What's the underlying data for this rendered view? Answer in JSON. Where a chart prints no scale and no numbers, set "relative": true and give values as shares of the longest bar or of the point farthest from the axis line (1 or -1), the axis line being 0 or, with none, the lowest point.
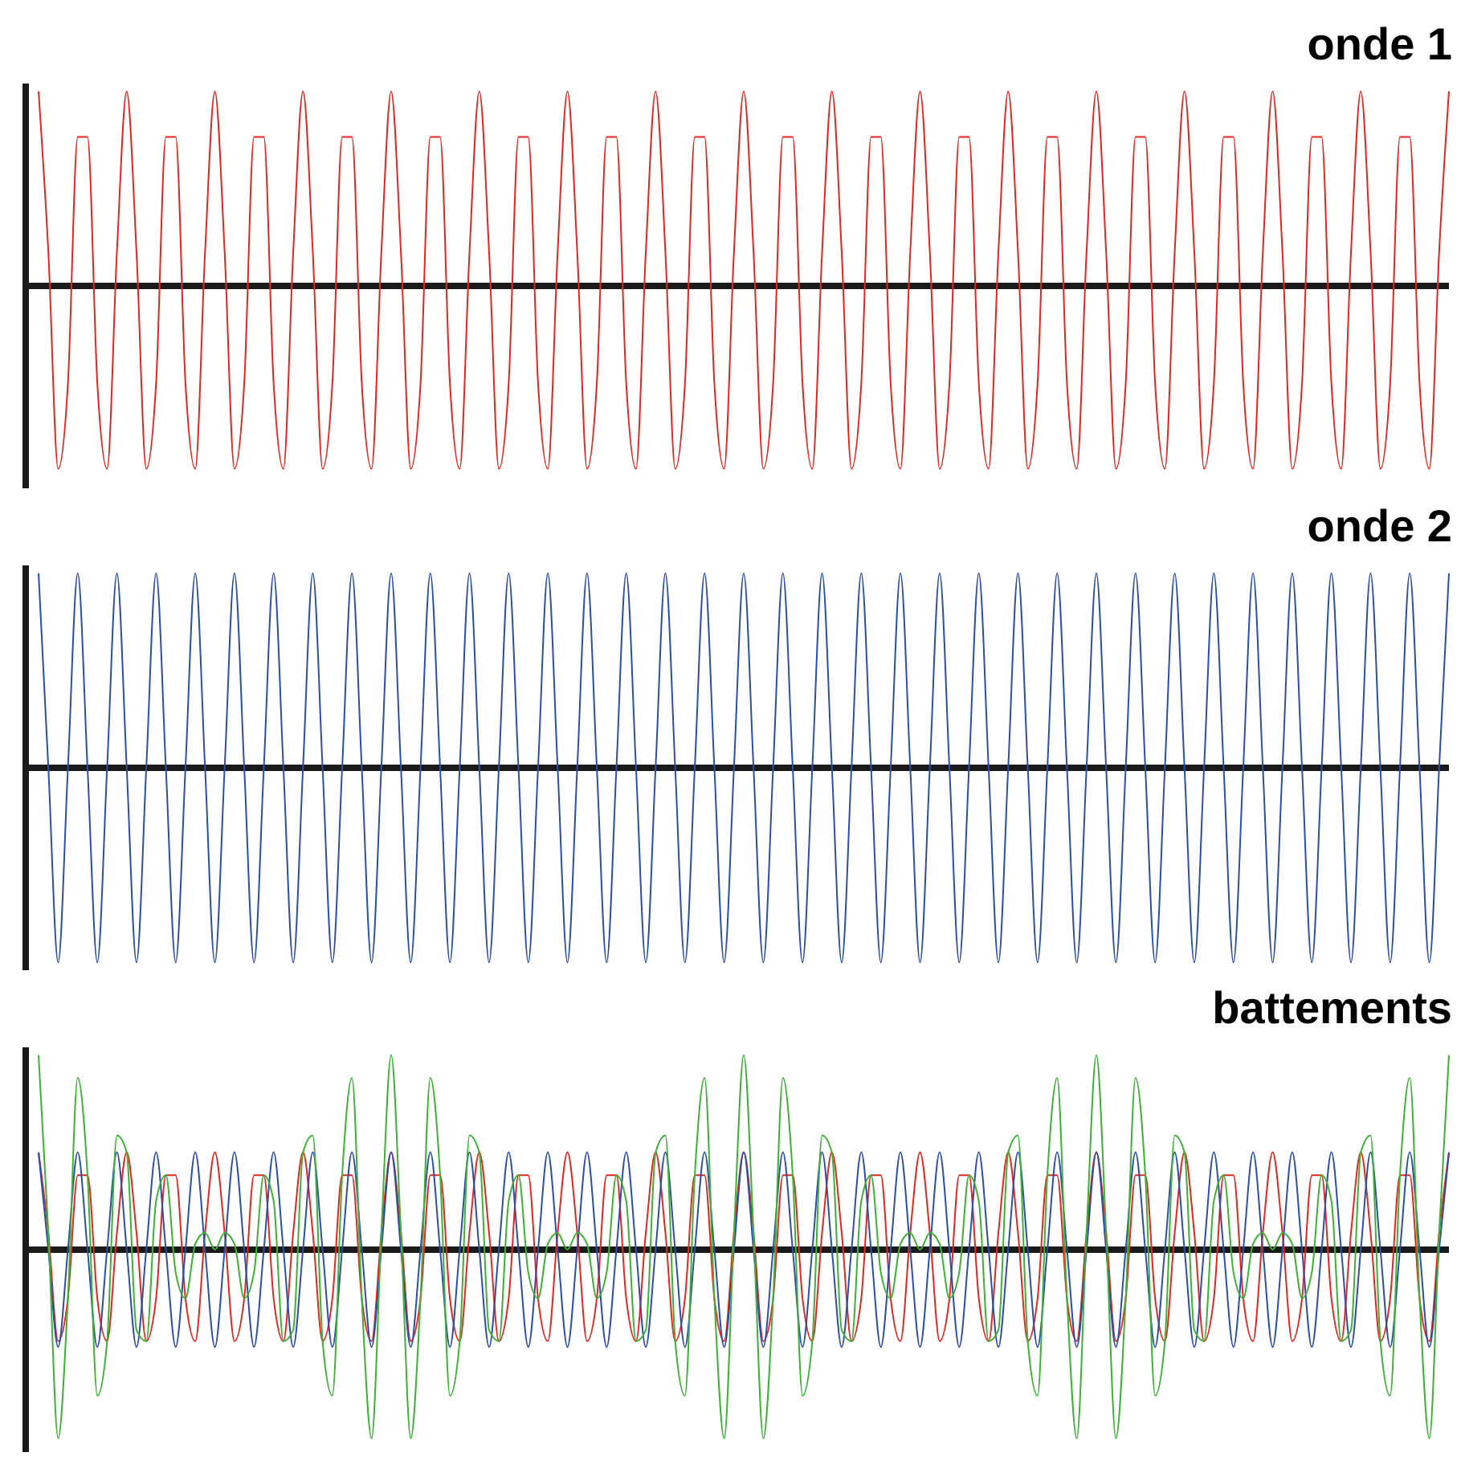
{
  "chart_data": [
    {
      "type": "line",
      "title": "onde 1",
      "relative": true,
      "categories": [
        null,
        null,
        null,
        null,
        null,
        null,
        null,
        null,
        null,
        null,
        null,
        null,
        null,
        null,
        null,
        null,
        null,
        null,
        null,
        null,
        null,
        null,
        null,
        null,
        null,
        null,
        null,
        null,
        null,
        null,
        null,
        null,
        null,
        null,
        null,
        null,
        null,
        null,
        null,
        null,
        null,
        null,
        null,
        null,
        null,
        null,
        null,
        null,
        null,
        null,
        null,
        null,
        null,
        null,
        null,
        null,
        null,
        null,
        null,
        null,
        null,
        null,
        null,
        null,
        null,
        null,
        null,
        null,
        null,
        null,
        null,
        null,
        null,
        null,
        null,
        null,
        null,
        null,
        null,
        null,
        null,
        null,
        null,
        null,
        null,
        null,
        null,
        null,
        null,
        null,
        null,
        null,
        null,
        null,
        null,
        null,
        null,
        null,
        null,
        null,
        null,
        null,
        null,
        null,
        null,
        null,
        null,
        null,
        null,
        null,
        null,
        null,
        null,
        null,
        null,
        null,
        null,
        null,
        null,
        null,
        null,
        null,
        null,
        null,
        null,
        null,
        null,
        null,
        null,
        null,
        null,
        null,
        null,
        null,
        null,
        null,
        null,
        null,
        null,
        null,
        null,
        null,
        null,
        null,
        null
      ],
      "series": [
        {
          "color": "#e3261f",
          "values": [
            1,
            0.174,
            -0.94,
            -0.5,
            0.766,
            0.766,
            -0.5,
            -0.94,
            0.174,
            1,
            0.174,
            -0.94,
            -0.5,
            0.766,
            0.766,
            -0.5,
            -0.94,
            0.174,
            1,
            0.174,
            -0.94,
            -0.5,
            0.766,
            0.766,
            -0.5,
            -0.94,
            0.174,
            1,
            0.174,
            -0.94,
            -0.5,
            0.766,
            0.766,
            -0.5,
            -0.94,
            0.174,
            1,
            0.174,
            -0.94,
            -0.5,
            0.766,
            0.766,
            -0.5,
            -0.94,
            0.174,
            1,
            0.174,
            -0.94,
            -0.5,
            0.766,
            0.766,
            -0.5,
            -0.94,
            0.174,
            1,
            0.174,
            -0.94,
            -0.5,
            0.766,
            0.766,
            -0.5,
            -0.94,
            0.174,
            1,
            0.174,
            -0.94,
            -0.5,
            0.766,
            0.766,
            -0.5,
            -0.94,
            0.174,
            1,
            0.174,
            -0.94,
            -0.5,
            0.766,
            0.766,
            -0.5,
            -0.94,
            0.174,
            1,
            0.174,
            -0.94,
            -0.5,
            0.766,
            0.766,
            -0.5,
            -0.94,
            0.174,
            1,
            0.174,
            -0.94,
            -0.5,
            0.766,
            0.766,
            -0.5,
            -0.94,
            0.174,
            1,
            0.174,
            -0.94,
            -0.5,
            0.766,
            0.766,
            -0.5,
            -0.94,
            0.174,
            1,
            0.174,
            -0.94,
            -0.5,
            0.766,
            0.766,
            -0.5,
            -0.94,
            0.174,
            1,
            0.174,
            -0.94,
            -0.5,
            0.766,
            0.766,
            -0.5,
            -0.94,
            0.174,
            1,
            0.174,
            -0.94,
            -0.5,
            0.766,
            0.766,
            -0.5,
            -0.94,
            0.174,
            1,
            0.174,
            -0.94,
            -0.5,
            0.766,
            0.766,
            -0.5,
            -0.94,
            0.174,
            1
          ]
        }
      ]
    },
    {
      "type": "line",
      "title": "onde 2",
      "relative": true,
      "categories": [
        null,
        null,
        null,
        null,
        null,
        null,
        null,
        null,
        null,
        null,
        null,
        null,
        null,
        null,
        null,
        null,
        null,
        null,
        null,
        null,
        null,
        null,
        null,
        null,
        null,
        null,
        null,
        null,
        null,
        null,
        null,
        null,
        null,
        null,
        null,
        null,
        null,
        null,
        null,
        null,
        null,
        null,
        null,
        null,
        null,
        null,
        null,
        null,
        null,
        null,
        null,
        null,
        null,
        null,
        null,
        null,
        null,
        null,
        null,
        null,
        null,
        null,
        null,
        null,
        null,
        null,
        null,
        null,
        null,
        null,
        null,
        null,
        null,
        null,
        null,
        null,
        null,
        null,
        null,
        null,
        null,
        null,
        null,
        null,
        null,
        null,
        null,
        null,
        null,
        null,
        null,
        null,
        null,
        null,
        null,
        null,
        null,
        null,
        null,
        null,
        null,
        null,
        null,
        null,
        null,
        null,
        null,
        null,
        null,
        null,
        null,
        null,
        null,
        null,
        null,
        null,
        null,
        null,
        null,
        null,
        null,
        null,
        null,
        null,
        null,
        null,
        null,
        null,
        null,
        null,
        null,
        null,
        null,
        null,
        null,
        null,
        null,
        null,
        null,
        null,
        null,
        null,
        null,
        null,
        null
      ],
      "series": [
        {
          "color": "#2c4ea6",
          "values": [
            1,
            0,
            -1,
            0,
            1,
            0,
            -1,
            0,
            1,
            0,
            -1,
            0,
            1,
            0,
            -1,
            0,
            1,
            0,
            -1,
            0,
            1,
            0,
            -1,
            0,
            1,
            0,
            -1,
            0,
            1,
            0,
            -1,
            0,
            1,
            0,
            -1,
            0,
            1,
            0,
            -1,
            0,
            1,
            0,
            -1,
            0,
            1,
            0,
            -1,
            0,
            1,
            0,
            -1,
            0,
            1,
            0,
            -1,
            0,
            1,
            0,
            -1,
            0,
            1,
            0,
            -1,
            0,
            1,
            0,
            -1,
            0,
            1,
            0,
            -1,
            0,
            1,
            0,
            -1,
            0,
            1,
            0,
            -1,
            0,
            1,
            0,
            -1,
            0,
            1,
            0,
            -1,
            0,
            1,
            0,
            -1,
            0,
            1,
            0,
            -1,
            0,
            1,
            0,
            -1,
            0,
            1,
            0,
            -1,
            0,
            1,
            0,
            -1,
            0,
            1,
            0,
            -1,
            0,
            1,
            0,
            -1,
            0,
            1,
            0,
            -1,
            0,
            1,
            0,
            -1,
            0,
            1,
            0,
            -1,
            0,
            1,
            0,
            -1,
            0,
            1,
            0,
            -1,
            0,
            1,
            0,
            -1,
            0,
            1,
            0,
            -1,
            0,
            1
          ]
        }
      ]
    },
    {
      "type": "line",
      "title": "battements",
      "relative": true,
      "categories": [
        null,
        null,
        null,
        null,
        null,
        null,
        null,
        null,
        null,
        null,
        null,
        null,
        null,
        null,
        null,
        null,
        null,
        null,
        null,
        null,
        null,
        null,
        null,
        null,
        null,
        null,
        null,
        null,
        null,
        null,
        null,
        null,
        null,
        null,
        null,
        null,
        null,
        null,
        null,
        null,
        null,
        null,
        null,
        null,
        null,
        null,
        null,
        null,
        null,
        null,
        null,
        null,
        null,
        null,
        null,
        null,
        null,
        null,
        null,
        null,
        null,
        null,
        null,
        null,
        null,
        null,
        null,
        null,
        null,
        null,
        null,
        null,
        null,
        null,
        null,
        null,
        null,
        null,
        null,
        null,
        null,
        null,
        null,
        null,
        null,
        null,
        null,
        null,
        null,
        null,
        null,
        null,
        null,
        null,
        null,
        null,
        null,
        null,
        null,
        null,
        null,
        null,
        null,
        null,
        null,
        null,
        null,
        null,
        null,
        null,
        null,
        null,
        null,
        null,
        null,
        null,
        null,
        null,
        null,
        null,
        null,
        null,
        null,
        null,
        null,
        null,
        null,
        null,
        null,
        null,
        null,
        null,
        null,
        null,
        null,
        null,
        null,
        null,
        null,
        null,
        null,
        null,
        null,
        null,
        null
      ],
      "series": [
        {
          "color": "#e3261f",
          "values": [
            0.5,
            0.087,
            -0.47,
            -0.25,
            0.383,
            0.383,
            -0.25,
            -0.47,
            0.087,
            0.5,
            0.087,
            -0.47,
            -0.25,
            0.383,
            0.383,
            -0.25,
            -0.47,
            0.087,
            0.5,
            0.087,
            -0.47,
            -0.25,
            0.383,
            0.383,
            -0.25,
            -0.47,
            0.087,
            0.5,
            0.087,
            -0.47,
            -0.25,
            0.383,
            0.383,
            -0.25,
            -0.47,
            0.087,
            0.5,
            0.087,
            -0.47,
            -0.25,
            0.383,
            0.383,
            -0.25,
            -0.47,
            0.087,
            0.5,
            0.087,
            -0.47,
            -0.25,
            0.383,
            0.383,
            -0.25,
            -0.47,
            0.087,
            0.5,
            0.087,
            -0.47,
            -0.25,
            0.383,
            0.383,
            -0.25,
            -0.47,
            0.087,
            0.5,
            0.087,
            -0.47,
            -0.25,
            0.383,
            0.383,
            -0.25,
            -0.47,
            0.087,
            0.5,
            0.087,
            -0.47,
            -0.25,
            0.383,
            0.383,
            -0.25,
            -0.47,
            0.087,
            0.5,
            0.087,
            -0.47,
            -0.25,
            0.383,
            0.383,
            -0.25,
            -0.47,
            0.087,
            0.5,
            0.087,
            -0.47,
            -0.25,
            0.383,
            0.383,
            -0.25,
            -0.47,
            0.087,
            0.5,
            0.087,
            -0.47,
            -0.25,
            0.383,
            0.383,
            -0.25,
            -0.47,
            0.087,
            0.5,
            0.087,
            -0.47,
            -0.25,
            0.383,
            0.383,
            -0.25,
            -0.47,
            0.087,
            0.5,
            0.087,
            -0.47,
            -0.25,
            0.383,
            0.383,
            -0.25,
            -0.47,
            0.087,
            0.5,
            0.087,
            -0.47,
            -0.25,
            0.383,
            0.383,
            -0.25,
            -0.47,
            0.087,
            0.5,
            0.087,
            -0.47,
            -0.25,
            0.383,
            0.383,
            -0.25,
            -0.47,
            0.087,
            0.5
          ]
        },
        {
          "color": "#2c4ea6",
          "values": [
            0.5,
            0,
            -0.5,
            0,
            0.5,
            0,
            -0.5,
            0,
            0.5,
            0,
            -0.5,
            0,
            0.5,
            0,
            -0.5,
            0,
            0.5,
            0,
            -0.5,
            0,
            0.5,
            0,
            -0.5,
            0,
            0.5,
            0,
            -0.5,
            0,
            0.5,
            0,
            -0.5,
            0,
            0.5,
            0,
            -0.5,
            0,
            0.5,
            0,
            -0.5,
            0,
            0.5,
            0,
            -0.5,
            0,
            0.5,
            0,
            -0.5,
            0,
            0.5,
            0,
            -0.5,
            0,
            0.5,
            0,
            -0.5,
            0,
            0.5,
            0,
            -0.5,
            0,
            0.5,
            0,
            -0.5,
            0,
            0.5,
            0,
            -0.5,
            0,
            0.5,
            0,
            -0.5,
            0,
            0.5,
            0,
            -0.5,
            0,
            0.5,
            0,
            -0.5,
            0,
            0.5,
            0,
            -0.5,
            0,
            0.5,
            0,
            -0.5,
            0,
            0.5,
            0,
            -0.5,
            0,
            0.5,
            0,
            -0.5,
            0,
            0.5,
            0,
            -0.5,
            0,
            0.5,
            0,
            -0.5,
            0,
            0.5,
            0,
            -0.5,
            0,
            0.5,
            0,
            -0.5,
            0,
            0.5,
            0,
            -0.5,
            0,
            0.5,
            0,
            -0.5,
            0,
            0.5,
            0,
            -0.5,
            0,
            0.5,
            0,
            -0.5,
            0,
            0.5,
            0,
            -0.5,
            0,
            0.5,
            0,
            -0.5,
            0,
            0.5,
            0,
            -0.5,
            0,
            0.5,
            0,
            -0.5,
            0,
            0.5
          ]
        },
        {
          "color": "#3cb134",
          "values": [
            1,
            0.087,
            -0.97,
            -0.25,
            0.883,
            0.383,
            -0.75,
            -0.47,
            0.587,
            0.5,
            -0.413,
            -0.47,
            0.25,
            0.383,
            -0.117,
            -0.25,
            0.03,
            0.087,
            0,
            0.087,
            0.03,
            -0.25,
            -0.117,
            0.383,
            0.25,
            -0.47,
            -0.413,
            0.5,
            0.587,
            -0.47,
            -0.75,
            0.383,
            0.883,
            -0.25,
            -0.97,
            0.087,
            1,
            0.087,
            -0.97,
            -0.25,
            0.883,
            0.383,
            -0.75,
            -0.47,
            0.587,
            0.5,
            -0.413,
            -0.47,
            0.25,
            0.383,
            -0.117,
            -0.25,
            0.03,
            0.087,
            0,
            0.087,
            0.03,
            -0.25,
            -0.117,
            0.383,
            0.25,
            -0.47,
            -0.413,
            0.5,
            0.587,
            -0.47,
            -0.75,
            0.383,
            0.883,
            -0.25,
            -0.97,
            0.087,
            1,
            0.087,
            -0.97,
            -0.25,
            0.883,
            0.383,
            -0.75,
            -0.47,
            0.587,
            0.5,
            -0.413,
            -0.47,
            0.25,
            0.383,
            -0.117,
            -0.25,
            0.03,
            0.087,
            0,
            0.087,
            0.03,
            -0.25,
            -0.117,
            0.383,
            0.25,
            -0.47,
            -0.413,
            0.5,
            0.587,
            -0.47,
            -0.75,
            0.383,
            0.883,
            -0.25,
            -0.97,
            0.087,
            1,
            0.087,
            -0.97,
            -0.25,
            0.883,
            0.383,
            -0.75,
            -0.47,
            0.587,
            0.5,
            -0.413,
            -0.47,
            0.25,
            0.383,
            -0.117,
            -0.25,
            0.03,
            0.087,
            0,
            0.087,
            0.03,
            -0.25,
            -0.117,
            0.383,
            0.25,
            -0.47,
            -0.413,
            0.5,
            0.587,
            -0.47,
            -0.75,
            0.383,
            0.883,
            -0.25,
            -0.97,
            0.087,
            1
          ]
        }
      ]
    }
  ]
}
